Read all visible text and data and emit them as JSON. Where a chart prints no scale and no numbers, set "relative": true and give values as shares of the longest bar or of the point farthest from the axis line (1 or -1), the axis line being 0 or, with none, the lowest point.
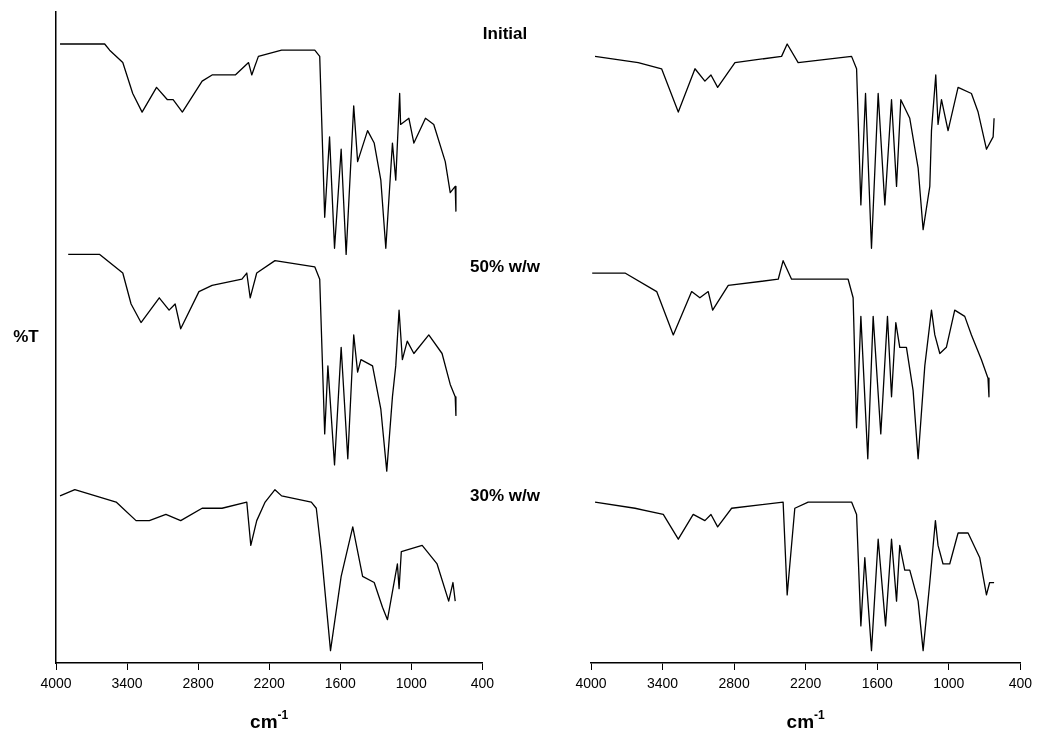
{
  "chart_data": [
    {
      "type": "line",
      "relative": true,
      "ylabel": "%T",
      "xlabel": "cm$^{-1}$",
      "xlim": [
        4000,
        400
      ],
      "xticks": [
        4000,
        3400,
        2800,
        2200,
        1600,
        1000,
        400
      ],
      "tick_labels": "x",
      "grid": false,
      "legend": false,
      "marker": "none",
      "line_style": "solid",
      "series": [
        {
          "color": "#000000",
          "x": [
            3966,
            3589,
            3547,
            3436,
            3352,
            3273,
            3151,
            3059,
            3011,
            2933,
            2766,
            2682,
            2486,
            2374,
            2347,
            2291,
            2095,
            1815,
            1773,
            1731,
            1690,
            1648,
            1592,
            1550,
            1486,
            1453,
            1369,
            1313,
            1257,
            1215,
            1159,
            1131,
            1098,
            1090,
            1020,
            978,
            880,
            810,
            713,
            671,
            629,
            623
          ],
          "values": [
            1.0,
            1.0,
            0.99,
            0.97,
            0.92,
            0.89,
            0.93,
            0.91,
            0.91,
            0.89,
            0.94,
            0.95,
            0.95,
            0.97,
            0.95,
            0.98,
            0.99,
            0.99,
            0.98,
            0.72,
            0.85,
            0.67,
            0.83,
            0.66,
            0.9,
            0.81,
            0.86,
            0.84,
            0.78,
            0.67,
            0.84,
            0.78,
            0.92,
            0.87,
            0.88,
            0.84,
            0.88,
            0.87,
            0.81,
            0.76,
            0.77,
            0.73
          ]
        },
        {
          "color": "#000000",
          "x": [
            3897,
            3631,
            3436,
            3366,
            3282,
            3128,
            3045,
            2994,
            2947,
            2793,
            2682,
            2430,
            2389,
            2360,
            2305,
            2151,
            1815,
            1773,
            1731,
            1704,
            1648,
            1592,
            1536,
            1486,
            1453,
            1425,
            1327,
            1257,
            1207,
            1159,
            1131,
            1103,
            1075,
            1034,
            978,
            852,
            740,
            671,
            629,
            623
          ],
          "values": [
            0.66,
            0.66,
            0.63,
            0.58,
            0.55,
            0.59,
            0.57,
            0.58,
            0.54,
            0.6,
            0.61,
            0.62,
            0.63,
            0.59,
            0.63,
            0.65,
            0.64,
            0.62,
            0.37,
            0.48,
            0.32,
            0.51,
            0.33,
            0.53,
            0.47,
            0.49,
            0.48,
            0.41,
            0.31,
            0.43,
            0.48,
            0.57,
            0.49,
            0.52,
            0.5,
            0.53,
            0.5,
            0.45,
            0.43,
            0.4
          ]
        },
        {
          "color": "#000000",
          "x": [
            3966,
            3841,
            3492,
            3324,
            3212,
            3072,
            2947,
            2766,
            2598,
            2389,
            2355,
            2305,
            2234,
            2151,
            2095,
            1844,
            1802,
            1760,
            1682,
            1592,
            1494,
            1411,
            1313,
            1243,
            1201,
            1117,
            1103,
            1084,
            908,
            782,
            684,
            648,
            629
          ],
          "values": [
            0.27,
            0.28,
            0.26,
            0.23,
            0.23,
            0.24,
            0.23,
            0.25,
            0.25,
            0.26,
            0.19,
            0.23,
            0.26,
            0.28,
            0.27,
            0.26,
            0.25,
            0.18,
            0.02,
            0.14,
            0.22,
            0.14,
            0.13,
            0.09,
            0.07,
            0.16,
            0.12,
            0.18,
            0.19,
            0.16,
            0.1,
            0.13,
            0.1
          ]
        }
      ]
    },
    {
      "type": "line",
      "relative": true,
      "xlabel": "cm$^{-1}$",
      "xlim": [
        4000,
        400
      ],
      "xticks": [
        4000,
        3400,
        2800,
        2200,
        1600,
        1000,
        400
      ],
      "tick_labels": "x",
      "grid": false,
      "legend": false,
      "marker": "none",
      "line_style": "solid",
      "annotations": [
        "Initial",
        "50% w/w",
        "30% w/w"
      ],
      "series": [
        {
          "color": "#000000",
          "x": [
            3966,
            3604,
            3408,
            3268,
            3128,
            3045,
            2994,
            2938,
            2793,
            2402,
            2355,
            2263,
            1815,
            1773,
            1737,
            1698,
            1648,
            1592,
            1536,
            1480,
            1438,
            1402,
            1327,
            1257,
            1215,
            1159,
            1145,
            1109,
            1090,
            1061,
            1006,
            922,
            810,
            754,
            684,
            628,
            620
          ],
          "values": [
            0.98,
            0.97,
            0.96,
            0.89,
            0.96,
            0.94,
            0.95,
            0.93,
            0.97,
            0.98,
            1.0,
            0.97,
            0.98,
            0.96,
            0.74,
            0.92,
            0.67,
            0.92,
            0.74,
            0.91,
            0.77,
            0.91,
            0.88,
            0.8,
            0.7,
            0.77,
            0.86,
            0.95,
            0.87,
            0.91,
            0.86,
            0.93,
            0.92,
            0.89,
            0.83,
            0.85,
            0.88
          ]
        },
        {
          "color": "#000000",
          "x": [
            3990,
            3715,
            3449,
            3310,
            3156,
            3087,
            3017,
            2980,
            2849,
            2430,
            2389,
            2318,
            1844,
            1802,
            1773,
            1737,
            1679,
            1634,
            1570,
            1514,
            1480,
            1444,
            1411,
            1355,
            1299,
            1257,
            1201,
            1145,
            1117,
            1075,
            1020,
            950,
            866,
            810,
            726,
            671,
            663
          ],
          "values": [
            0.63,
            0.63,
            0.6,
            0.53,
            0.6,
            0.59,
            0.6,
            0.57,
            0.61,
            0.62,
            0.65,
            0.62,
            0.62,
            0.59,
            0.38,
            0.56,
            0.33,
            0.56,
            0.37,
            0.56,
            0.43,
            0.55,
            0.51,
            0.51,
            0.44,
            0.33,
            0.48,
            0.57,
            0.53,
            0.5,
            0.51,
            0.57,
            0.56,
            0.53,
            0.49,
            0.46,
            0.43
          ]
        },
        {
          "color": "#000000",
          "x": [
            3966,
            3631,
            3394,
            3268,
            3143,
            3045,
            2994,
            2938,
            2821,
            2389,
            2355,
            2291,
            2179,
            1815,
            1773,
            1737,
            1704,
            1648,
            1592,
            1530,
            1480,
            1438,
            1411,
            1369,
            1327,
            1257,
            1215,
            1159,
            1112,
            1090,
            1048,
            992,
            922,
            838,
            740,
            684,
            657,
            620
          ],
          "values": [
            0.26,
            0.25,
            0.24,
            0.2,
            0.24,
            0.23,
            0.24,
            0.22,
            0.25,
            0.26,
            0.11,
            0.25,
            0.26,
            0.26,
            0.24,
            0.06,
            0.17,
            0.02,
            0.2,
            0.06,
            0.2,
            0.1,
            0.19,
            0.15,
            0.15,
            0.1,
            0.02,
            0.13,
            0.23,
            0.19,
            0.16,
            0.16,
            0.21,
            0.21,
            0.17,
            0.11,
            0.13,
            0.13
          ]
        }
      ]
    }
  ]
}
